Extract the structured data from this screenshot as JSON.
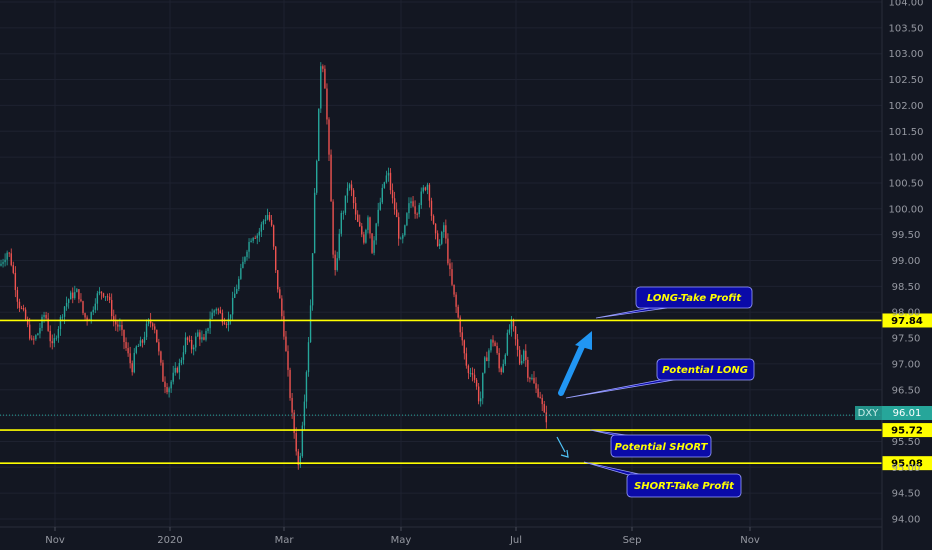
{
  "chart_data": {
    "type": "candlestick",
    "symbol": "DXY",
    "last_price": "96.01",
    "ylim": [
      93.9,
      104.05
    ],
    "y_ticks": [
      "94.00",
      "94.50",
      "95.00",
      "95.50",
      "96.00",
      "96.50",
      "97.00",
      "97.50",
      "98.00",
      "98.50",
      "99.00",
      "99.50",
      "100.00",
      "100.50",
      "101.00",
      "101.50",
      "102.00",
      "102.50",
      "103.00",
      "103.50",
      "104.00"
    ],
    "x_ticks": [
      "Nov",
      "2020",
      "Mar",
      "May",
      "Jul",
      "Sep",
      "Nov"
    ],
    "price_path": [
      [
        0,
        98.9
      ],
      [
        8,
        99.2
      ],
      [
        12,
        98.9
      ],
      [
        18,
        98.2
      ],
      [
        25,
        97.9
      ],
      [
        32,
        97.4
      ],
      [
        38,
        97.6
      ],
      [
        45,
        98.0
      ],
      [
        52,
        97.3
      ],
      [
        58,
        97.7
      ],
      [
        64,
        98.1
      ],
      [
        70,
        98.3
      ],
      [
        78,
        98.4
      ],
      [
        84,
        97.9
      ],
      [
        90,
        97.9
      ],
      [
        96,
        98.3
      ],
      [
        102,
        98.4
      ],
      [
        108,
        98.3
      ],
      [
        114,
        97.8
      ],
      [
        120,
        97.7
      ],
      [
        126,
        97.3
      ],
      [
        132,
        96.9
      ],
      [
        136,
        97.3
      ],
      [
        142,
        97.4
      ],
      [
        148,
        97.8
      ],
      [
        154,
        97.8
      ],
      [
        158,
        97.3
      ],
      [
        163,
        96.7
      ],
      [
        168,
        96.5
      ],
      [
        174,
        96.8
      ],
      [
        180,
        97.0
      ],
      [
        186,
        97.5
      ],
      [
        192,
        97.3
      ],
      [
        198,
        97.6
      ],
      [
        204,
        97.4
      ],
      [
        210,
        97.9
      ],
      [
        216,
        98.1
      ],
      [
        222,
        97.9
      ],
      [
        228,
        97.8
      ],
      [
        234,
        98.3
      ],
      [
        240,
        98.7
      ],
      [
        246,
        99.2
      ],
      [
        252,
        99.5
      ],
      [
        258,
        99.5
      ],
      [
        264,
        99.8
      ],
      [
        268,
        99.9
      ],
      [
        272,
        99.6
      ],
      [
        276,
        98.7
      ],
      [
        280,
        98.2
      ],
      [
        284,
        97.6
      ],
      [
        288,
        96.8
      ],
      [
        292,
        96.0
      ],
      [
        296,
        95.4
      ],
      [
        299,
        94.9
      ],
      [
        302,
        95.8
      ],
      [
        305,
        96.5
      ],
      [
        308,
        97.3
      ],
      [
        311,
        98.3
      ],
      [
        314,
        100.0
      ],
      [
        318,
        101.5
      ],
      [
        321,
        102.9
      ],
      [
        324,
        102.7
      ],
      [
        327,
        101.7
      ],
      [
        330,
        100.6
      ],
      [
        333,
        99.2
      ],
      [
        336,
        98.6
      ],
      [
        340,
        99.8
      ],
      [
        344,
        100.0
      ],
      [
        348,
        100.5
      ],
      [
        352,
        100.3
      ],
      [
        356,
        99.8
      ],
      [
        360,
        99.6
      ],
      [
        364,
        99.4
      ],
      [
        368,
        99.9
      ],
      [
        372,
        99.2
      ],
      [
        376,
        99.7
      ],
      [
        380,
        100.1
      ],
      [
        384,
        100.5
      ],
      [
        388,
        100.7
      ],
      [
        392,
        100.2
      ],
      [
        396,
        99.9
      ],
      [
        400,
        99.3
      ],
      [
        404,
        99.5
      ],
      [
        408,
        100.0
      ],
      [
        412,
        100.2
      ],
      [
        416,
        99.9
      ],
      [
        420,
        100.2
      ],
      [
        424,
        100.4
      ],
      [
        428,
        100.5
      ],
      [
        432,
        99.8
      ],
      [
        436,
        99.4
      ],
      [
        440,
        99.3
      ],
      [
        444,
        99.7
      ],
      [
        448,
        99.0
      ],
      [
        452,
        98.5
      ],
      [
        456,
        98.1
      ],
      [
        460,
        97.7
      ],
      [
        464,
        97.2
      ],
      [
        468,
        96.8
      ],
      [
        472,
        96.9
      ],
      [
        476,
        96.6
      ],
      [
        480,
        96.2
      ],
      [
        484,
        97.0
      ],
      [
        488,
        97.2
      ],
      [
        492,
        97.5
      ],
      [
        496,
        97.3
      ],
      [
        500,
        96.8
      ],
      [
        504,
        97.1
      ],
      [
        508,
        97.6
      ],
      [
        512,
        97.8
      ],
      [
        516,
        97.4
      ],
      [
        520,
        97.0
      ],
      [
        524,
        97.3
      ],
      [
        528,
        96.8
      ],
      [
        532,
        96.7
      ],
      [
        536,
        96.5
      ],
      [
        540,
        96.4
      ],
      [
        544,
        96.0
      ],
      [
        548,
        95.9
      ]
    ],
    "horizontal_levels": [
      {
        "value": 97.84,
        "label": "97.84"
      },
      {
        "value": 95.72,
        "label": "95.72"
      },
      {
        "value": 95.08,
        "label": "95.08"
      }
    ],
    "current_price_level": 96.01,
    "annotations": [
      {
        "text": "LONG-Take Profit"
      },
      {
        "text": "Potential LONG"
      },
      {
        "text": "Potential SHORT"
      },
      {
        "text": "SHORT-Take Profit"
      }
    ],
    "colors": {
      "background": "#131722",
      "grid": "#1e2230",
      "up": "#26a69a",
      "down": "#ef5350",
      "level_line": "#ffff00",
      "current_price": "#26a69a",
      "callout_fill": "#0a0aa8",
      "callout_text": "#ffff00",
      "arrow_big": "#2196f3",
      "arrow_small": "#4fc3f7"
    }
  }
}
